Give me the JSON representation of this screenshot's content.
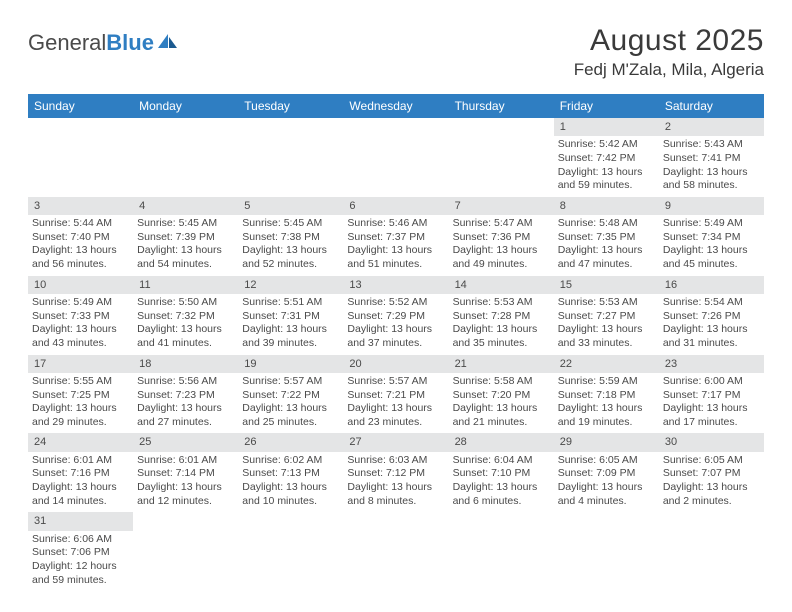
{
  "logo": {
    "general": "General",
    "blue": "Blue"
  },
  "title": "August 2025",
  "location": "Fedj M'Zala, Mila, Algeria",
  "colors": {
    "header_bg": "#2f7ec2",
    "header_text": "#ffffff",
    "daynum_bg": "#e4e5e6",
    "body_text": "#4a4a4a",
    "page_bg": "#ffffff"
  },
  "dayNames": [
    "Sunday",
    "Monday",
    "Tuesday",
    "Wednesday",
    "Thursday",
    "Friday",
    "Saturday"
  ],
  "weeks": [
    [
      null,
      null,
      null,
      null,
      null,
      {
        "n": "1",
        "sr": "Sunrise: 5:42 AM",
        "ss": "Sunset: 7:42 PM",
        "d1": "Daylight: 13 hours",
        "d2": "and 59 minutes."
      },
      {
        "n": "2",
        "sr": "Sunrise: 5:43 AM",
        "ss": "Sunset: 7:41 PM",
        "d1": "Daylight: 13 hours",
        "d2": "and 58 minutes."
      }
    ],
    [
      {
        "n": "3",
        "sr": "Sunrise: 5:44 AM",
        "ss": "Sunset: 7:40 PM",
        "d1": "Daylight: 13 hours",
        "d2": "and 56 minutes."
      },
      {
        "n": "4",
        "sr": "Sunrise: 5:45 AM",
        "ss": "Sunset: 7:39 PM",
        "d1": "Daylight: 13 hours",
        "d2": "and 54 minutes."
      },
      {
        "n": "5",
        "sr": "Sunrise: 5:45 AM",
        "ss": "Sunset: 7:38 PM",
        "d1": "Daylight: 13 hours",
        "d2": "and 52 minutes."
      },
      {
        "n": "6",
        "sr": "Sunrise: 5:46 AM",
        "ss": "Sunset: 7:37 PM",
        "d1": "Daylight: 13 hours",
        "d2": "and 51 minutes."
      },
      {
        "n": "7",
        "sr": "Sunrise: 5:47 AM",
        "ss": "Sunset: 7:36 PM",
        "d1": "Daylight: 13 hours",
        "d2": "and 49 minutes."
      },
      {
        "n": "8",
        "sr": "Sunrise: 5:48 AM",
        "ss": "Sunset: 7:35 PM",
        "d1": "Daylight: 13 hours",
        "d2": "and 47 minutes."
      },
      {
        "n": "9",
        "sr": "Sunrise: 5:49 AM",
        "ss": "Sunset: 7:34 PM",
        "d1": "Daylight: 13 hours",
        "d2": "and 45 minutes."
      }
    ],
    [
      {
        "n": "10",
        "sr": "Sunrise: 5:49 AM",
        "ss": "Sunset: 7:33 PM",
        "d1": "Daylight: 13 hours",
        "d2": "and 43 minutes."
      },
      {
        "n": "11",
        "sr": "Sunrise: 5:50 AM",
        "ss": "Sunset: 7:32 PM",
        "d1": "Daylight: 13 hours",
        "d2": "and 41 minutes."
      },
      {
        "n": "12",
        "sr": "Sunrise: 5:51 AM",
        "ss": "Sunset: 7:31 PM",
        "d1": "Daylight: 13 hours",
        "d2": "and 39 minutes."
      },
      {
        "n": "13",
        "sr": "Sunrise: 5:52 AM",
        "ss": "Sunset: 7:29 PM",
        "d1": "Daylight: 13 hours",
        "d2": "and 37 minutes."
      },
      {
        "n": "14",
        "sr": "Sunrise: 5:53 AM",
        "ss": "Sunset: 7:28 PM",
        "d1": "Daylight: 13 hours",
        "d2": "and 35 minutes."
      },
      {
        "n": "15",
        "sr": "Sunrise: 5:53 AM",
        "ss": "Sunset: 7:27 PM",
        "d1": "Daylight: 13 hours",
        "d2": "and 33 minutes."
      },
      {
        "n": "16",
        "sr": "Sunrise: 5:54 AM",
        "ss": "Sunset: 7:26 PM",
        "d1": "Daylight: 13 hours",
        "d2": "and 31 minutes."
      }
    ],
    [
      {
        "n": "17",
        "sr": "Sunrise: 5:55 AM",
        "ss": "Sunset: 7:25 PM",
        "d1": "Daylight: 13 hours",
        "d2": "and 29 minutes."
      },
      {
        "n": "18",
        "sr": "Sunrise: 5:56 AM",
        "ss": "Sunset: 7:23 PM",
        "d1": "Daylight: 13 hours",
        "d2": "and 27 minutes."
      },
      {
        "n": "19",
        "sr": "Sunrise: 5:57 AM",
        "ss": "Sunset: 7:22 PM",
        "d1": "Daylight: 13 hours",
        "d2": "and 25 minutes."
      },
      {
        "n": "20",
        "sr": "Sunrise: 5:57 AM",
        "ss": "Sunset: 7:21 PM",
        "d1": "Daylight: 13 hours",
        "d2": "and 23 minutes."
      },
      {
        "n": "21",
        "sr": "Sunrise: 5:58 AM",
        "ss": "Sunset: 7:20 PM",
        "d1": "Daylight: 13 hours",
        "d2": "and 21 minutes."
      },
      {
        "n": "22",
        "sr": "Sunrise: 5:59 AM",
        "ss": "Sunset: 7:18 PM",
        "d1": "Daylight: 13 hours",
        "d2": "and 19 minutes."
      },
      {
        "n": "23",
        "sr": "Sunrise: 6:00 AM",
        "ss": "Sunset: 7:17 PM",
        "d1": "Daylight: 13 hours",
        "d2": "and 17 minutes."
      }
    ],
    [
      {
        "n": "24",
        "sr": "Sunrise: 6:01 AM",
        "ss": "Sunset: 7:16 PM",
        "d1": "Daylight: 13 hours",
        "d2": "and 14 minutes."
      },
      {
        "n": "25",
        "sr": "Sunrise: 6:01 AM",
        "ss": "Sunset: 7:14 PM",
        "d1": "Daylight: 13 hours",
        "d2": "and 12 minutes."
      },
      {
        "n": "26",
        "sr": "Sunrise: 6:02 AM",
        "ss": "Sunset: 7:13 PM",
        "d1": "Daylight: 13 hours",
        "d2": "and 10 minutes."
      },
      {
        "n": "27",
        "sr": "Sunrise: 6:03 AM",
        "ss": "Sunset: 7:12 PM",
        "d1": "Daylight: 13 hours",
        "d2": "and 8 minutes."
      },
      {
        "n": "28",
        "sr": "Sunrise: 6:04 AM",
        "ss": "Sunset: 7:10 PM",
        "d1": "Daylight: 13 hours",
        "d2": "and 6 minutes."
      },
      {
        "n": "29",
        "sr": "Sunrise: 6:05 AM",
        "ss": "Sunset: 7:09 PM",
        "d1": "Daylight: 13 hours",
        "d2": "and 4 minutes."
      },
      {
        "n": "30",
        "sr": "Sunrise: 6:05 AM",
        "ss": "Sunset: 7:07 PM",
        "d1": "Daylight: 13 hours",
        "d2": "and 2 minutes."
      }
    ],
    [
      {
        "n": "31",
        "sr": "Sunrise: 6:06 AM",
        "ss": "Sunset: 7:06 PM",
        "d1": "Daylight: 12 hours",
        "d2": "and 59 minutes."
      },
      null,
      null,
      null,
      null,
      null,
      null
    ]
  ]
}
